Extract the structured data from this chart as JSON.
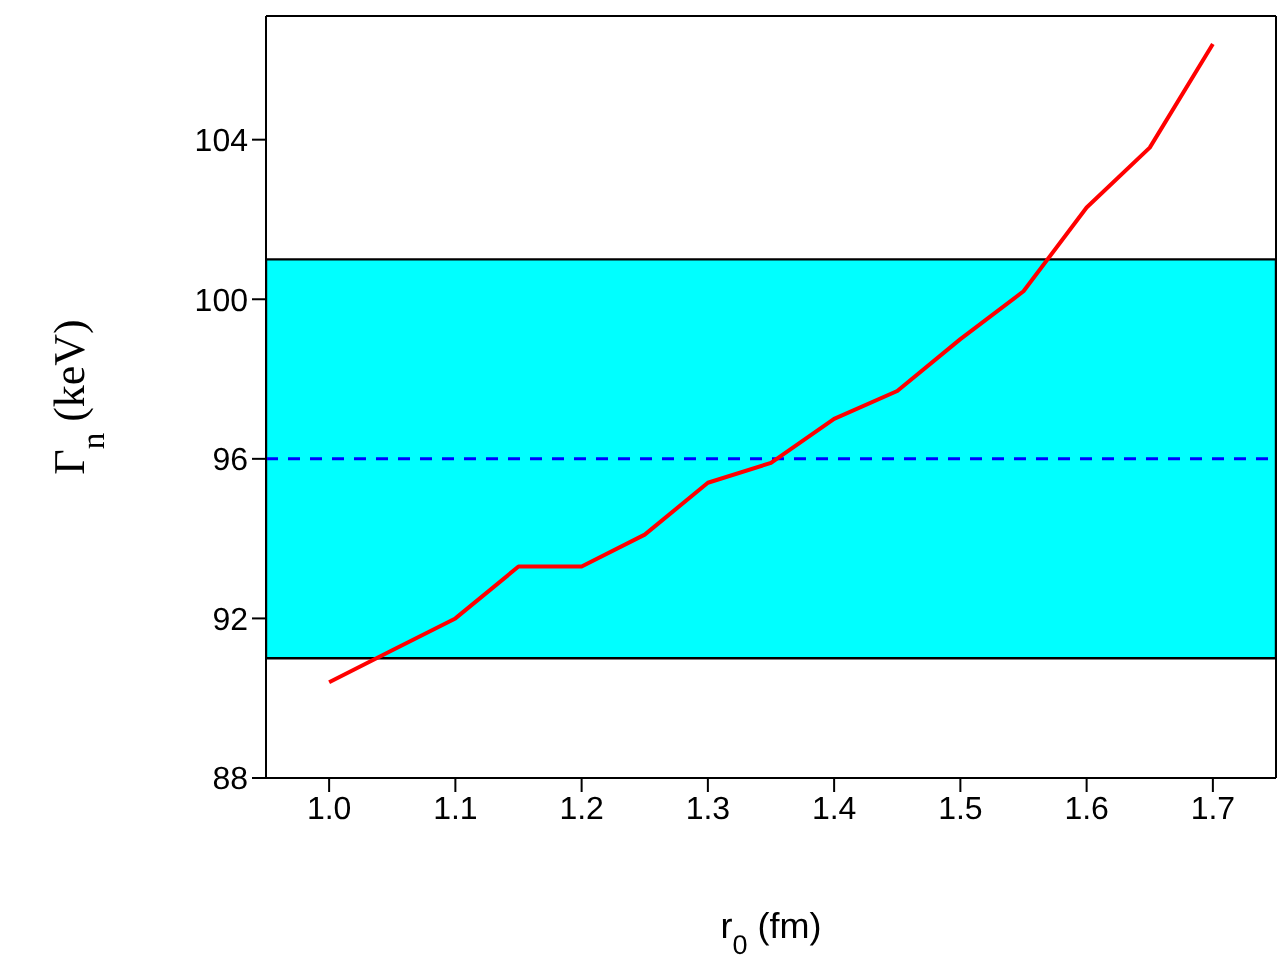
{
  "chart_data": {
    "type": "line",
    "xlabel": "r$_{0}$ (fm)",
    "ylabel": "Γ$_{n}$ (keV)",
    "x": [
      1.0,
      1.05,
      1.1,
      1.15,
      1.2,
      1.25,
      1.3,
      1.35,
      1.4,
      1.45,
      1.5,
      1.55,
      1.6,
      1.65,
      1.7
    ],
    "series": [
      {
        "color": "#ff0000",
        "values": [
          90.4,
          91.2,
          92.0,
          93.3,
          93.3,
          94.1,
          95.4,
          95.9,
          97.0,
          97.7,
          99.0,
          100.2,
          102.3,
          103.8,
          106.4
        ]
      }
    ],
    "xlim": [
      0.95,
      1.75
    ],
    "xticks": [
      {
        "value": 1.0,
        "label": "1.0"
      },
      1.1,
      1.2,
      1.3,
      1.4,
      1.5,
      1.6,
      1.7
    ],
    "ylim": [
      88,
      107.1
    ],
    "yticks": [
      88,
      92,
      96,
      100,
      104
    ],
    "bands": [
      {
        "axis": "y",
        "from": 91,
        "to": 101,
        "color": "#00ffff"
      }
    ],
    "ref_lines": [
      {
        "axis": "y",
        "value": 96,
        "color": "#0000ff",
        "line_style": "dashed"
      }
    ],
    "grid": false,
    "legend": false,
    "marker": "none",
    "line_style": "solid"
  }
}
